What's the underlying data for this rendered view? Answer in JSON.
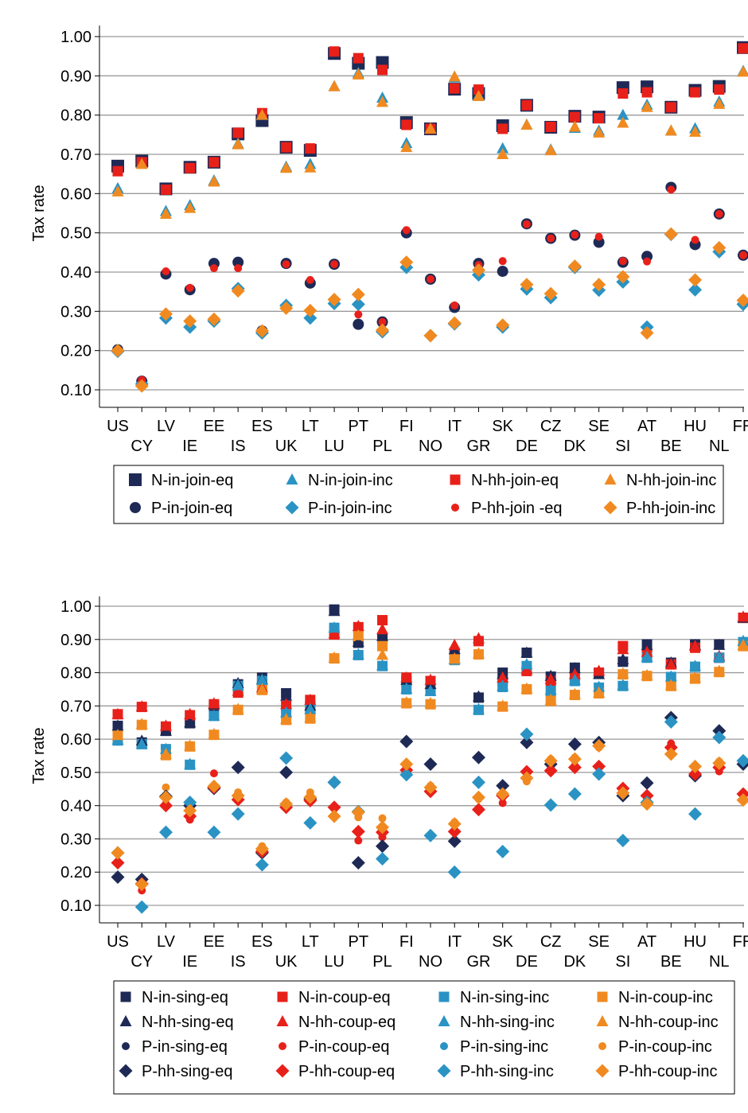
{
  "chart_data": [
    {
      "type": "scatter",
      "ylabel": "Tax rate",
      "ylim": [
        0.05,
        1.02
      ],
      "yticks": [
        "1.00",
        "0.90",
        "0.80",
        "0.70",
        "0.60",
        "0.50",
        "0.40",
        "0.30",
        "0.20",
        "0.10"
      ],
      "grid": true,
      "legend_position": "bottom",
      "categories": [
        "US",
        "CY",
        "LV",
        "IE",
        "EE",
        "IS",
        "ES",
        "UK",
        "LT",
        "LU",
        "PT",
        "PL",
        "FI",
        "NO",
        "IT",
        "GR",
        "SK",
        "DE",
        "CZ",
        "DK",
        "SE",
        "SI",
        "AT",
        "BE",
        "HU",
        "NL",
        "FR"
      ],
      "series": [
        {
          "name": "N-in-join-eq",
          "color": "#1e2a55",
          "marker": "square-lg",
          "values": [
            0.67,
            0.683,
            0.612,
            0.667,
            0.68,
            0.752,
            0.786,
            0.718,
            0.71,
            0.957,
            0.932,
            0.934,
            0.781,
            0.765,
            0.866,
            0.855,
            0.773,
            0.825,
            0.769,
            0.797,
            0.795,
            0.87,
            0.872,
            0.82,
            0.863,
            0.873,
            0.972
          ]
        },
        {
          "name": "N-in-join-inc",
          "color": "#2a93c4",
          "marker": "triangle",
          "values": [
            0.613,
            0.678,
            0.555,
            0.57,
            0.633,
            0.727,
            0.8,
            0.668,
            0.675,
            0.873,
            0.907,
            0.844,
            0.728,
            0.765,
            0.895,
            0.85,
            0.715,
            0.775,
            0.712,
            0.767,
            0.76,
            0.8,
            0.826,
            0.76,
            0.766,
            0.834,
            0.912
          ]
        },
        {
          "name": "N-hh-join-eq",
          "color": "#e8201a",
          "marker": "square",
          "values": [
            0.657,
            0.68,
            0.61,
            0.665,
            0.68,
            0.755,
            0.805,
            0.718,
            0.715,
            0.962,
            0.945,
            0.915,
            0.775,
            0.765,
            0.868,
            0.865,
            0.765,
            0.825,
            0.77,
            0.795,
            0.792,
            0.855,
            0.858,
            0.82,
            0.858,
            0.865,
            0.97
          ]
        },
        {
          "name": "N-hh-join-inc",
          "color": "#f08a20",
          "marker": "triangle",
          "values": [
            0.605,
            0.675,
            0.548,
            0.563,
            0.63,
            0.725,
            0.8,
            0.665,
            0.666,
            0.873,
            0.903,
            0.833,
            0.718,
            0.765,
            0.898,
            0.848,
            0.7,
            0.775,
            0.71,
            0.77,
            0.755,
            0.78,
            0.82,
            0.76,
            0.757,
            0.828,
            0.91
          ]
        },
        {
          "name": "P-in-join-eq",
          "color": "#1e2a55",
          "marker": "circle-lg",
          "values": [
            0.202,
            0.122,
            0.395,
            0.355,
            0.422,
            0.425,
            0.25,
            0.422,
            0.372,
            0.42,
            0.267,
            0.273,
            0.5,
            0.382,
            0.31,
            0.422,
            0.402,
            0.523,
            0.486,
            0.494,
            0.476,
            0.425,
            0.44,
            0.616,
            0.47,
            0.548,
            0.443
          ]
        },
        {
          "name": "P-in-join-inc",
          "color": "#2a93c4",
          "marker": "diamond",
          "values": [
            0.198,
            0.115,
            0.283,
            0.26,
            0.275,
            0.358,
            0.245,
            0.315,
            0.283,
            0.32,
            0.318,
            0.248,
            0.412,
            0.238,
            0.268,
            0.393,
            0.26,
            0.357,
            0.335,
            0.412,
            0.354,
            0.375,
            0.26,
            0.496,
            0.355,
            0.452,
            0.318
          ]
        },
        {
          "name": "P-hh-join -eq",
          "color": "#e8201a",
          "marker": "circle",
          "values": [
            0.2,
            0.125,
            0.402,
            0.36,
            0.41,
            0.41,
            0.253,
            0.42,
            0.38,
            0.42,
            0.292,
            0.273,
            0.507,
            0.382,
            0.315,
            0.418,
            0.428,
            0.522,
            0.486,
            0.495,
            0.49,
            0.428,
            0.427,
            0.61,
            0.482,
            0.548,
            0.443
          ]
        },
        {
          "name": "P-hh-join-inc",
          "color": "#f08a20",
          "marker": "diamond",
          "values": [
            0.2,
            0.11,
            0.293,
            0.275,
            0.28,
            0.352,
            0.25,
            0.308,
            0.302,
            0.33,
            0.343,
            0.252,
            0.425,
            0.238,
            0.27,
            0.405,
            0.265,
            0.368,
            0.345,
            0.415,
            0.368,
            0.388,
            0.245,
            0.497,
            0.38,
            0.462,
            0.328
          ]
        }
      ]
    },
    {
      "type": "scatter",
      "ylabel": "Tax rate",
      "ylim": [
        0.05,
        1.02
      ],
      "yticks": [
        "1.00",
        "0.90",
        "0.80",
        "0.70",
        "0.60",
        "0.50",
        "0.40",
        "0.30",
        "0.20",
        "0.10"
      ],
      "grid": true,
      "legend_position": "bottom",
      "categories": [
        "US",
        "CY",
        "LV",
        "IE",
        "EE",
        "IS",
        "ES",
        "UK",
        "LT",
        "LU",
        "PT",
        "PL",
        "FI",
        "NO",
        "IT",
        "GR",
        "SK",
        "DE",
        "CZ",
        "DK",
        "SE",
        "SI",
        "AT",
        "BE",
        "HU",
        "NL",
        "FR"
      ],
      "series": [
        {
          "name": "N-in-sing-eq",
          "color": "#1e2a55",
          "marker": "square",
          "values": [
            0.64,
            0.59,
            0.625,
            0.648,
            0.7,
            0.765,
            0.785,
            0.738,
            0.7,
            0.99,
            0.89,
            0.905,
            0.775,
            0.762,
            0.855,
            0.725,
            0.8,
            0.86,
            0.788,
            0.815,
            0.8,
            0.833,
            0.885,
            0.83,
            0.885,
            0.885,
            0.965
          ]
        },
        {
          "name": "N-in-coup-eq",
          "color": "#e8201a",
          "marker": "square",
          "values": [
            0.675,
            0.697,
            0.638,
            0.672,
            0.705,
            0.74,
            0.752,
            0.7,
            0.718,
            0.915,
            0.937,
            0.958,
            0.785,
            0.775,
            0.86,
            0.895,
            0.775,
            0.805,
            0.775,
            0.79,
            0.8,
            0.88,
            0.86,
            0.825,
            0.875,
            0.845,
            0.965
          ]
        },
        {
          "name": "N-in-sing-inc",
          "color": "#2a93c4",
          "marker": "square",
          "values": [
            0.596,
            0.585,
            0.57,
            0.523,
            0.67,
            0.76,
            0.775,
            0.678,
            0.69,
            0.935,
            0.853,
            0.82,
            0.75,
            0.745,
            0.838,
            0.688,
            0.757,
            0.82,
            0.745,
            0.775,
            0.755,
            0.76,
            0.845,
            0.787,
            0.818,
            0.845,
            0.892
          ]
        },
        {
          "name": "N-in-coup-inc",
          "color": "#f08a20",
          "marker": "square",
          "values": [
            0.612,
            0.643,
            0.552,
            0.578,
            0.613,
            0.688,
            0.748,
            0.658,
            0.662,
            0.843,
            0.91,
            0.88,
            0.708,
            0.705,
            0.84,
            0.855,
            0.698,
            0.75,
            0.715,
            0.733,
            0.738,
            0.795,
            0.79,
            0.76,
            0.782,
            0.802,
            0.88
          ]
        },
        {
          "name": "N-hh-sing-eq",
          "color": "#1e2a55",
          "marker": "triangle",
          "values": [
            0.64,
            0.595,
            0.625,
            0.65,
            0.705,
            0.768,
            0.78,
            0.73,
            0.7,
            0.985,
            0.893,
            0.91,
            0.778,
            0.765,
            0.87,
            0.728,
            0.795,
            0.86,
            0.79,
            0.813,
            0.795,
            0.84,
            0.882,
            0.83,
            0.883,
            0.883,
            0.965
          ]
        },
        {
          "name": "N-hh-coup-eq",
          "color": "#e8201a",
          "marker": "triangle",
          "values": [
            0.675,
            0.698,
            0.64,
            0.675,
            0.707,
            0.745,
            0.755,
            0.705,
            0.718,
            0.918,
            0.94,
            0.93,
            0.785,
            0.778,
            0.883,
            0.903,
            0.785,
            0.81,
            0.78,
            0.795,
            0.805,
            0.87,
            0.862,
            0.825,
            0.88,
            0.85,
            0.968
          ]
        },
        {
          "name": "N-hh-sing-inc",
          "color": "#2a93c4",
          "marker": "triangle",
          "values": [
            0.598,
            0.585,
            0.57,
            0.525,
            0.67,
            0.762,
            0.778,
            0.68,
            0.69,
            0.935,
            0.855,
            0.822,
            0.752,
            0.745,
            0.84,
            0.69,
            0.76,
            0.825,
            0.748,
            0.778,
            0.757,
            0.762,
            0.847,
            0.788,
            0.82,
            0.847,
            0.895
          ]
        },
        {
          "name": "N-hh-coup-inc",
          "color": "#f08a20",
          "marker": "triangle",
          "values": [
            0.612,
            0.645,
            0.555,
            0.58,
            0.615,
            0.69,
            0.75,
            0.66,
            0.665,
            0.845,
            0.912,
            0.853,
            0.71,
            0.708,
            0.842,
            0.858,
            0.7,
            0.752,
            0.718,
            0.735,
            0.74,
            0.797,
            0.792,
            0.762,
            0.785,
            0.805,
            0.883
          ]
        },
        {
          "name": "P-in-sing-eq",
          "color": "#1e2a55",
          "marker": "circle",
          "values": [
            0.185,
            0.178,
            0.43,
            0.402,
            0.455,
            0.515,
            0.26,
            0.5,
            0.42,
            0.47,
            0.23,
            0.28,
            0.593,
            0.525,
            0.293,
            0.545,
            0.46,
            0.59,
            0.525,
            0.585,
            0.59,
            0.43,
            0.468,
            0.665,
            0.49,
            0.625,
            0.525
          ]
        },
        {
          "name": "P-in-coup-eq",
          "color": "#e8201a",
          "marker": "circle",
          "values": [
            0.228,
            0.145,
            0.405,
            0.358,
            0.497,
            0.415,
            0.263,
            0.395,
            0.412,
            0.395,
            0.295,
            0.305,
            0.502,
            0.443,
            0.32,
            0.39,
            0.408,
            0.505,
            0.52,
            0.52,
            0.518,
            0.455,
            0.418,
            0.587,
            0.5,
            0.503,
            0.433
          ]
        },
        {
          "name": "P-in-sing-inc",
          "color": "#2a93c4",
          "marker": "circle",
          "values": [
            0.26,
            0.097,
            0.32,
            0.41,
            0.32,
            0.375,
            0.225,
            0.543,
            0.348,
            0.47,
            0.382,
            0.24,
            0.493,
            0.31,
            0.2,
            0.472,
            0.263,
            0.615,
            0.402,
            0.435,
            0.495,
            0.296,
            0.41,
            0.652,
            0.375,
            0.605,
            0.535
          ]
        },
        {
          "name": "P-in-coup-inc",
          "color": "#f08a20",
          "marker": "circle",
          "values": [
            0.258,
            0.165,
            0.455,
            0.395,
            0.46,
            0.44,
            0.278,
            0.41,
            0.44,
            0.367,
            0.365,
            0.362,
            0.523,
            0.46,
            0.35,
            0.42,
            0.428,
            0.473,
            0.54,
            0.545,
            0.575,
            0.44,
            0.403,
            0.555,
            0.52,
            0.533,
            0.415
          ]
        },
        {
          "name": "P-hh-sing-eq",
          "color": "#1e2a55",
          "marker": "diamond",
          "values": [
            0.185,
            0.178,
            0.428,
            0.4,
            0.452,
            0.515,
            0.258,
            0.5,
            0.42,
            0.47,
            0.228,
            0.278,
            0.593,
            0.525,
            0.293,
            0.545,
            0.46,
            0.59,
            0.525,
            0.585,
            0.59,
            0.43,
            0.468,
            0.665,
            0.49,
            0.625,
            0.525
          ]
        },
        {
          "name": "P-hh-coup-eq",
          "color": "#e8201a",
          "marker": "diamond",
          "values": [
            0.228,
            0.165,
            0.4,
            0.368,
            0.455,
            0.418,
            0.262,
            0.395,
            0.415,
            0.395,
            0.322,
            0.32,
            0.507,
            0.443,
            0.322,
            0.388,
            0.43,
            0.502,
            0.505,
            0.515,
            0.518,
            0.452,
            0.43,
            0.575,
            0.495,
            0.515,
            0.435
          ]
        },
        {
          "name": "P-hh-sing-inc",
          "color": "#2a93c4",
          "marker": "diamond",
          "values": [
            0.258,
            0.095,
            0.32,
            0.41,
            0.32,
            0.375,
            0.222,
            0.543,
            0.348,
            0.47,
            0.382,
            0.24,
            0.493,
            0.31,
            0.2,
            0.47,
            0.262,
            0.615,
            0.402,
            0.435,
            0.495,
            0.295,
            0.41,
            0.652,
            0.375,
            0.605,
            0.535
          ]
        },
        {
          "name": "P-hh-coup-inc",
          "color": "#f08a20",
          "marker": "diamond",
          "values": [
            0.258,
            0.163,
            0.425,
            0.385,
            0.458,
            0.43,
            0.27,
            0.405,
            0.425,
            0.368,
            0.38,
            0.335,
            0.525,
            0.455,
            0.345,
            0.425,
            0.435,
            0.483,
            0.535,
            0.54,
            0.58,
            0.438,
            0.405,
            0.555,
            0.518,
            0.528,
            0.417
          ]
        }
      ]
    }
  ]
}
